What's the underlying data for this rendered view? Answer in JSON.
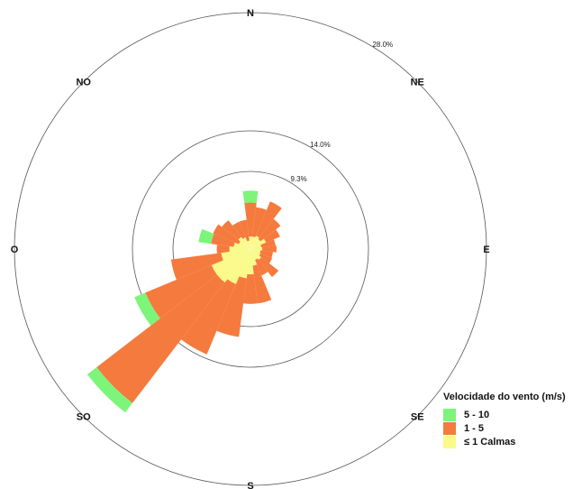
{
  "chart_data": {
    "type": "windrose",
    "legend": {
      "title": "Velocidade do vento (m/s)",
      "placement": "bottom-right",
      "items": [
        {
          "label": "5 - 10",
          "color": "#7cf57a"
        },
        {
          "label": "1 - 5",
          "color": "#f57a3d"
        },
        {
          "label": "≤ 1 Calmas",
          "color": "#f9fa8a"
        }
      ]
    },
    "directions": [
      "N",
      "NE",
      "E",
      "SE",
      "S",
      "SO",
      "O",
      "NO"
    ],
    "ring_labels": [
      {
        "label": "9.3%",
        "value": 9.3
      },
      {
        "label": "14.0%",
        "value": 14.0
      },
      {
        "label": "28.0%",
        "value": 28.0
      }
    ],
    "max_value": 28.0,
    "series_order": [
      "≤ 1 Calmas",
      "1 - 5",
      "5 - 10"
    ],
    "sectors": [
      {
        "angle": 0,
        "values": [
          1.5,
          4.0,
          1.4
        ]
      },
      {
        "angle": 15,
        "values": [
          1.5,
          3.5,
          0
        ]
      },
      {
        "angle": 30,
        "values": [
          1.7,
          4.4,
          0
        ]
      },
      {
        "angle": 45,
        "values": [
          1.5,
          3.0,
          0
        ]
      },
      {
        "angle": 60,
        "values": [
          2.0,
          1.8,
          0
        ]
      },
      {
        "angle": 75,
        "values": [
          1.3,
          1.7,
          0
        ]
      },
      {
        "angle": 90,
        "values": [
          1.4,
          1.7,
          0
        ]
      },
      {
        "angle": 105,
        "values": [
          1.2,
          1.5,
          0
        ]
      },
      {
        "angle": 120,
        "values": [
          1.3,
          1.5,
          0
        ]
      },
      {
        "angle": 135,
        "values": [
          1.6,
          2.6,
          0
        ]
      },
      {
        "angle": 150,
        "values": [
          1.4,
          2.0,
          0
        ]
      },
      {
        "angle": 165,
        "values": [
          2.0,
          4.5,
          0
        ]
      },
      {
        "angle": 180,
        "values": [
          3.0,
          3.5,
          0
        ]
      },
      {
        "angle": 195,
        "values": [
          3.5,
          7.0,
          0
        ]
      },
      {
        "angle": 210,
        "values": [
          4.5,
          9.0,
          0
        ]
      },
      {
        "angle": 225,
        "values": [
          5.0,
          18.0,
          1.4
        ]
      },
      {
        "angle": 240,
        "values": [
          5.0,
          8.5,
          1.4
        ]
      },
      {
        "angle": 255,
        "values": [
          3.5,
          6.0,
          0
        ]
      },
      {
        "angle": 270,
        "values": [
          2.5,
          1.5,
          0
        ]
      },
      {
        "angle": 285,
        "values": [
          2.0,
          2.7,
          1.5
        ]
      },
      {
        "angle": 300,
        "values": [
          1.5,
          3.3,
          0
        ]
      },
      {
        "angle": 315,
        "values": [
          1.8,
          2.5,
          0
        ]
      },
      {
        "angle": 330,
        "values": [
          1.5,
          2.0,
          0
        ]
      },
      {
        "angle": 345,
        "values": [
          1.0,
          2.5,
          0
        ]
      }
    ],
    "grid": true
  }
}
